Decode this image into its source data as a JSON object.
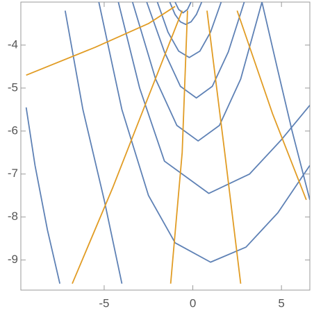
{
  "chart_data": {
    "type": "line",
    "xlim": [
      -9.7,
      6.6
    ],
    "ylim": [
      -9.7,
      -3.0
    ],
    "xticks": [
      -5,
      0,
      5
    ],
    "yticks": [
      -9,
      -8,
      -7,
      -6,
      -5,
      -4
    ],
    "series": [
      {
        "color": "#5e81b5",
        "x": [
          -1.0,
          -0.8,
          -0.55,
          -0.3,
          -0.1
        ],
        "values": [
          -3.0,
          -3.17,
          -3.25,
          -3.17,
          -3.0
        ]
      },
      {
        "color": "#5e81b5",
        "x": [
          -1.3,
          -1.0,
          -0.7,
          -0.4,
          -0.1,
          0.2,
          0.5
        ],
        "values": [
          -3.0,
          -3.29,
          -3.46,
          -3.52,
          -3.46,
          -3.29,
          -3.0
        ]
      },
      {
        "color": "#5e81b5",
        "x": [
          -2.0,
          -1.4,
          -0.8,
          -0.2,
          0.4,
          1.0,
          1.6
        ],
        "values": [
          -3.0,
          -3.7,
          -4.14,
          -4.29,
          -4.14,
          -3.7,
          -3.0
        ]
      },
      {
        "color": "#5e81b5",
        "x": [
          -2.6,
          -1.6,
          -0.7,
          0.2,
          1.1,
          2.0,
          2.9
        ],
        "values": [
          -3.0,
          -4.16,
          -4.96,
          -5.23,
          -4.96,
          -4.16,
          -3.0
        ]
      },
      {
        "color": "#5e81b5",
        "x": [
          -3.4,
          -2.1,
          -0.9,
          0.3,
          1.5,
          2.7,
          3.9
        ],
        "values": [
          -3.0,
          -4.79,
          -5.87,
          -6.23,
          -5.87,
          -4.79,
          -3.0
        ]
      },
      {
        "color": "#5e81b5",
        "x": [
          -4.2,
          -3.0,
          -1.6,
          0.9,
          3.2,
          5.0,
          6.6
        ],
        "values": [
          -3.0,
          -5.0,
          -6.7,
          -7.45,
          -7.0,
          -6.2,
          -5.4
        ]
      },
      {
        "color": "#5e81b5",
        "x": [
          3.9,
          4.8,
          5.6,
          6.6
        ],
        "values": [
          -3.0,
          -4.6,
          -6.0,
          -7.6
        ]
      },
      {
        "color": "#5e81b5",
        "x": [
          -5.3,
          -4.0,
          -2.5,
          -1.0,
          1.0,
          3.0,
          4.8,
          6.6
        ],
        "values": [
          -3.0,
          -5.5,
          -7.5,
          -8.6,
          -9.05,
          -8.7,
          -7.9,
          -6.8
        ]
      },
      {
        "color": "#5e81b5",
        "x": [
          -7.2,
          -6.2,
          -5.0,
          -4.0
        ],
        "values": [
          -3.2,
          -5.5,
          -7.6,
          -9.55
        ]
      },
      {
        "color": "#5e81b5",
        "x": [
          -9.4,
          -8.9,
          -8.2,
          -7.5
        ],
        "values": [
          -5.45,
          -6.8,
          -8.3,
          -9.55
        ]
      },
      {
        "color": "#e19c24",
        "x": [
          -9.4,
          -5.5,
          -2.5,
          -1.0
        ],
        "values": [
          -4.7,
          -4.05,
          -3.5,
          -3.1
        ]
      },
      {
        "color": "#e19c24",
        "x": [
          -6.8,
          -4.5,
          -2.6,
          -0.6
        ],
        "values": [
          -9.55,
          -7.3,
          -5.3,
          -3.2
        ]
      },
      {
        "color": "#e19c24",
        "x": [
          -1.25,
          -0.6,
          -0.3
        ],
        "values": [
          -9.55,
          -6.5,
          -3.2
        ]
      },
      {
        "color": "#e19c24",
        "x": [
          0.8,
          1.8,
          2.7
        ],
        "values": [
          -3.2,
          -6.5,
          -9.55
        ]
      },
      {
        "color": "#e19c24",
        "x": [
          2.5,
          4.5,
          6.4
        ],
        "values": [
          -3.2,
          -5.6,
          -7.6
        ]
      }
    ]
  }
}
